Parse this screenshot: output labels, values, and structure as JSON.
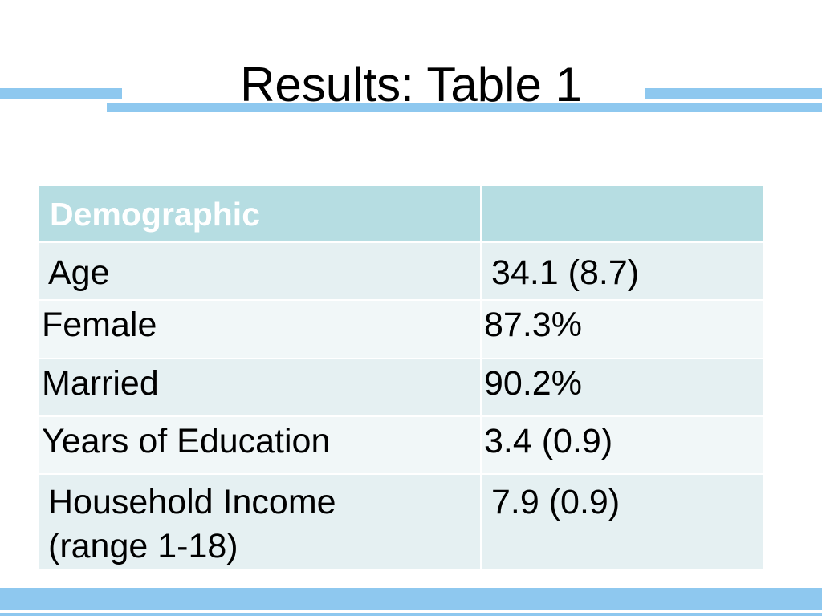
{
  "slide": {
    "title": "Results: Table 1"
  },
  "table": {
    "header": {
      "col1": "Demographic"
    },
    "rows": [
      {
        "label": "Age",
        "value": "34.1 (8.7)"
      },
      {
        "label": "Female",
        "value": "87.3%"
      },
      {
        "label": "Married",
        "value": "90.2%"
      },
      {
        "label": "Years of Education",
        "value": "3.4 (0.9)"
      },
      {
        "label": "Household Income\n(range 1-18)",
        "value": "7.9 (0.9)"
      }
    ]
  },
  "colors": {
    "accent_bars": "#8ec8ef",
    "header_fill": "#b6dde2",
    "row_dark": "#e5f0f2",
    "row_light": "#f1f7f8"
  }
}
